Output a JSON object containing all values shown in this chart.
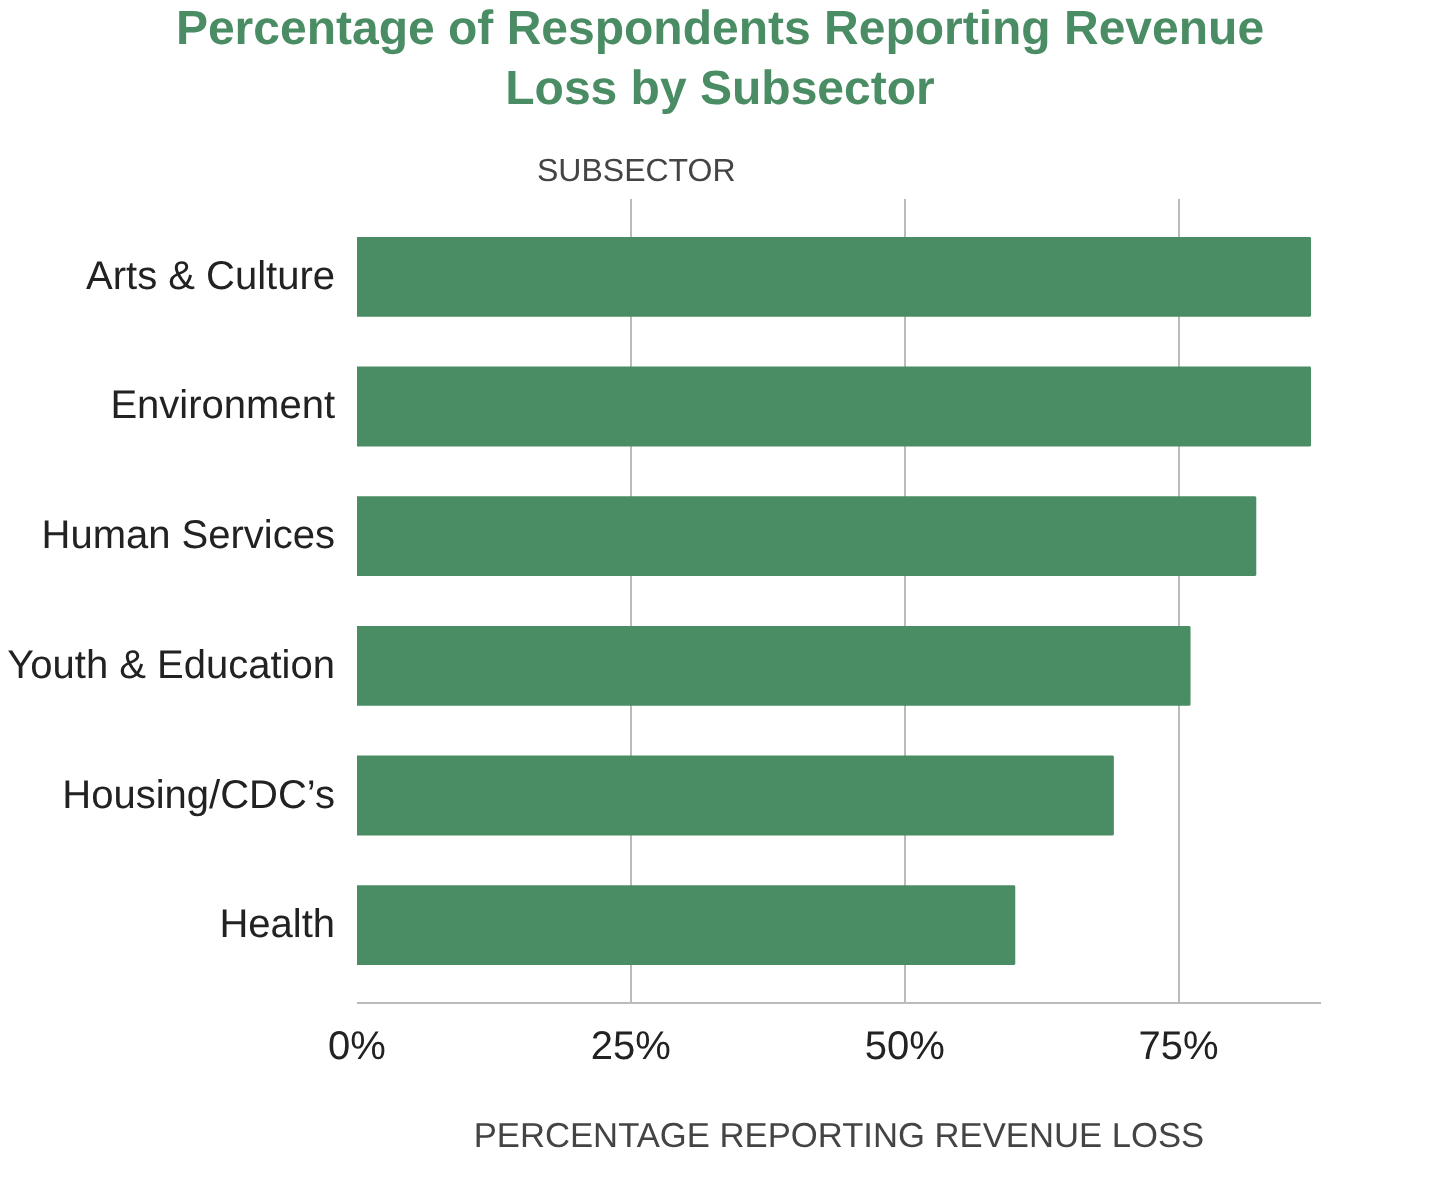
{
  "chart_data": {
    "type": "bar",
    "orientation": "horizontal",
    "title": "Percentage of Respondents Reporting Revenue Loss by Subsector",
    "ylabel": "SUBSECTOR",
    "xlabel": "PERCENTAGE REPORTING REVENUE LOSS",
    "categories": [
      "Arts & Culture",
      "Environment",
      "Human Services",
      "Youth & Education",
      "Housing/CDC’s",
      "Health"
    ],
    "values": [
      87,
      87,
      82,
      76,
      69,
      60
    ],
    "color": "#4a8c63",
    "xticks": [
      {
        "value": 0,
        "label": "0%"
      },
      {
        "value": 25,
        "label": "25%"
      },
      {
        "value": 50,
        "label": "50%"
      },
      {
        "value": 75,
        "label": "75%"
      }
    ],
    "xlim": [
      0,
      88
    ],
    "grid": "x"
  }
}
